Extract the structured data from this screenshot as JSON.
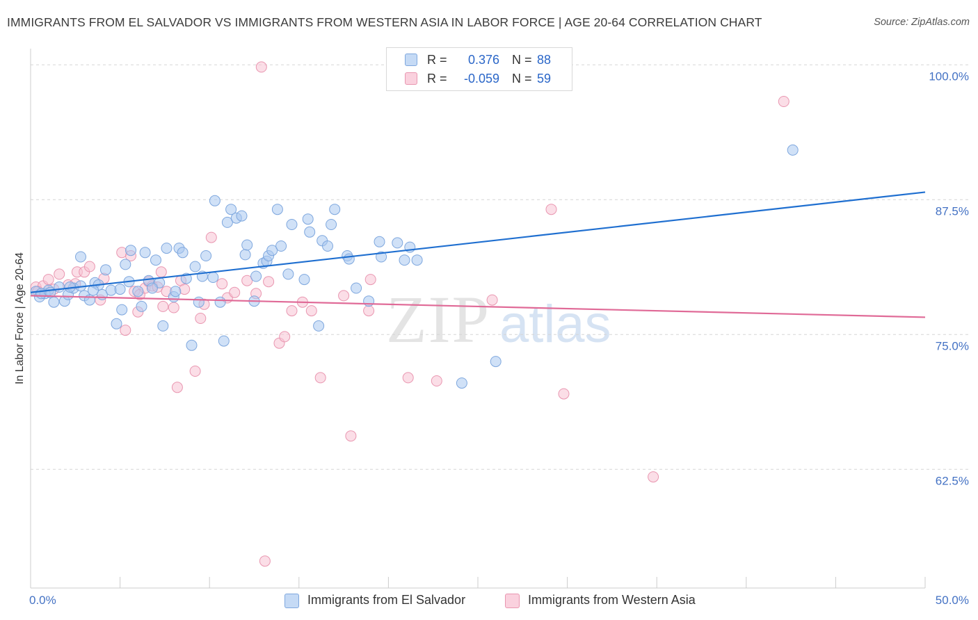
{
  "header": {
    "title": "IMMIGRANTS FROM EL SALVADOR VS IMMIGRANTS FROM WESTERN ASIA IN LABOR FORCE | AGE 20-64 CORRELATION CHART",
    "source": "Source: ZipAtlas.com"
  },
  "colors": {
    "blue_fill": "#a9c8f0",
    "blue_stroke": "#7ea7de",
    "blue_line": "#1f6fd0",
    "pink_fill": "#f7c3d3",
    "pink_stroke": "#e996b0",
    "pink_line": "#e06a97",
    "tick_text": "#4472c4",
    "grid": "#d5d5d5"
  },
  "legend": {
    "rows": [
      {
        "r_label": "R =",
        "r_value": "0.376",
        "n_label": "N =",
        "n_value": "88"
      },
      {
        "r_label": "R =",
        "r_value": "-0.059",
        "n_label": "N =",
        "n_value": "59"
      }
    ]
  },
  "bottom_legend": {
    "series1": "Immigrants from El Salvador",
    "series2": "Immigrants from Western Asia"
  },
  "watermark": {
    "zip": "ZIP",
    "atlas": "atlas"
  },
  "chart_data": {
    "type": "scatter",
    "title": "IMMIGRANTS FROM EL SALVADOR VS IMMIGRANTS FROM WESTERN ASIA IN LABOR FORCE | AGE 20-64 CORRELATION CHART",
    "xlabel": "",
    "ylabel": "In Labor Force | Age 20-64",
    "xlim": [
      0,
      50
    ],
    "ylim": [
      51.5,
      101.5
    ],
    "x_tick_labels": [
      "0.0%",
      "50.0%"
    ],
    "y_ticks": [
      62.5,
      75.0,
      87.5,
      100.0
    ],
    "y_tick_labels": [
      "62.5%",
      "75.0%",
      "87.5%",
      "100.0%"
    ],
    "grid": "horizontal dashed",
    "legend_position": "top-center",
    "series": [
      {
        "name": "Immigrants from El Salvador",
        "color": "#a9c8f0",
        "trend": {
          "x": [
            0,
            50
          ],
          "y": [
            78.9,
            88.2
          ]
        },
        "points": [
          [
            0.3,
            79.0
          ],
          [
            0.5,
            78.5
          ],
          [
            0.8,
            78.8
          ],
          [
            1.0,
            79.1
          ],
          [
            1.3,
            78.0
          ],
          [
            1.6,
            79.4
          ],
          [
            1.9,
            78.1
          ],
          [
            2.1,
            78.7
          ],
          [
            2.4,
            79.3
          ],
          [
            2.8,
            79.5
          ],
          [
            2.8,
            82.2
          ],
          [
            3.0,
            78.6
          ],
          [
            3.3,
            78.2
          ],
          [
            3.6,
            79.8
          ],
          [
            3.8,
            79.6
          ],
          [
            4.0,
            78.7
          ],
          [
            4.2,
            81.0
          ],
          [
            4.5,
            79.1
          ],
          [
            4.8,
            76.0
          ],
          [
            5.0,
            79.2
          ],
          [
            5.1,
            77.3
          ],
          [
            5.3,
            81.5
          ],
          [
            5.5,
            79.9
          ],
          [
            5.6,
            82.8
          ],
          [
            6.0,
            79.0
          ],
          [
            6.2,
            77.6
          ],
          [
            6.4,
            82.6
          ],
          [
            6.6,
            80.0
          ],
          [
            7.0,
            81.9
          ],
          [
            7.2,
            79.8
          ],
          [
            7.4,
            75.8
          ],
          [
            7.6,
            83.0
          ],
          [
            8.0,
            78.5
          ],
          [
            8.1,
            79.0
          ],
          [
            8.3,
            83.0
          ],
          [
            8.5,
            82.6
          ],
          [
            8.7,
            80.2
          ],
          [
            9.0,
            74.0
          ],
          [
            9.2,
            81.3
          ],
          [
            9.4,
            78.0
          ],
          [
            9.6,
            80.4
          ],
          [
            9.8,
            82.3
          ],
          [
            10.2,
            80.3
          ],
          [
            10.3,
            87.4
          ],
          [
            10.6,
            78.0
          ],
          [
            10.8,
            74.4
          ],
          [
            11.0,
            85.4
          ],
          [
            11.2,
            86.6
          ],
          [
            11.5,
            85.8
          ],
          [
            11.8,
            86.0
          ],
          [
            12.0,
            82.4
          ],
          [
            12.1,
            83.3
          ],
          [
            12.5,
            78.1
          ],
          [
            12.6,
            80.4
          ],
          [
            13.0,
            81.6
          ],
          [
            13.2,
            81.8
          ],
          [
            13.3,
            82.3
          ],
          [
            13.5,
            82.8
          ],
          [
            13.8,
            86.6
          ],
          [
            14.0,
            83.2
          ],
          [
            14.4,
            80.6
          ],
          [
            14.6,
            85.2
          ],
          [
            15.3,
            80.1
          ],
          [
            15.5,
            85.7
          ],
          [
            15.6,
            84.5
          ],
          [
            16.1,
            75.8
          ],
          [
            16.3,
            83.7
          ],
          [
            16.6,
            83.2
          ],
          [
            16.8,
            85.2
          ],
          [
            17.0,
            86.6
          ],
          [
            17.7,
            82.3
          ],
          [
            17.8,
            82.0
          ],
          [
            18.2,
            79.3
          ],
          [
            18.9,
            78.1
          ],
          [
            19.5,
            83.6
          ],
          [
            19.6,
            82.2
          ],
          [
            20.5,
            83.5
          ],
          [
            20.9,
            81.9
          ],
          [
            21.2,
            83.1
          ],
          [
            21.6,
            81.9
          ],
          [
            24.1,
            70.5
          ],
          [
            26.0,
            72.5
          ],
          [
            42.6,
            92.1
          ],
          [
            0.6,
            78.8
          ],
          [
            1.1,
            78.9
          ],
          [
            2.2,
            79.4
          ],
          [
            3.5,
            79.1
          ],
          [
            6.8,
            79.3
          ]
        ]
      },
      {
        "name": "Immigrants from Western Asia",
        "color": "#f7c3d3",
        "trend": {
          "x": [
            0,
            50
          ],
          "y": [
            78.6,
            76.6
          ]
        },
        "points": [
          [
            0.3,
            79.4
          ],
          [
            0.7,
            79.5
          ],
          [
            1.0,
            80.1
          ],
          [
            1.3,
            79.2
          ],
          [
            1.6,
            80.6
          ],
          [
            2.1,
            79.6
          ],
          [
            2.5,
            79.7
          ],
          [
            2.6,
            80.8
          ],
          [
            3.0,
            80.8
          ],
          [
            3.3,
            81.3
          ],
          [
            3.9,
            78.2
          ],
          [
            4.1,
            80.2
          ],
          [
            5.1,
            82.6
          ],
          [
            5.3,
            75.4
          ],
          [
            5.6,
            82.3
          ],
          [
            5.8,
            79.0
          ],
          [
            6.0,
            77.1
          ],
          [
            6.1,
            78.7
          ],
          [
            6.4,
            79.3
          ],
          [
            6.6,
            79.9
          ],
          [
            6.8,
            79.5
          ],
          [
            7.1,
            79.4
          ],
          [
            7.3,
            80.8
          ],
          [
            7.4,
            77.6
          ],
          [
            7.6,
            79.0
          ],
          [
            8.0,
            77.5
          ],
          [
            8.2,
            70.1
          ],
          [
            8.4,
            80.0
          ],
          [
            8.6,
            79.2
          ],
          [
            9.2,
            71.6
          ],
          [
            9.5,
            76.5
          ],
          [
            9.7,
            77.8
          ],
          [
            10.1,
            84.0
          ],
          [
            10.7,
            79.7
          ],
          [
            11.0,
            78.4
          ],
          [
            11.4,
            78.9
          ],
          [
            12.1,
            80.0
          ],
          [
            12.6,
            78.8
          ],
          [
            12.9,
            99.8
          ],
          [
            13.1,
            54.0
          ],
          [
            13.3,
            79.9
          ],
          [
            13.9,
            74.2
          ],
          [
            14.2,
            74.8
          ],
          [
            14.6,
            77.2
          ],
          [
            15.2,
            78.0
          ],
          [
            15.7,
            77.2
          ],
          [
            16.2,
            71.0
          ],
          [
            17.5,
            78.6
          ],
          [
            17.9,
            65.6
          ],
          [
            18.9,
            77.2
          ],
          [
            19.0,
            80.1
          ],
          [
            21.1,
            71.0
          ],
          [
            22.7,
            70.7
          ],
          [
            25.8,
            78.2
          ],
          [
            29.1,
            86.6
          ],
          [
            29.8,
            69.5
          ],
          [
            34.8,
            61.8
          ],
          [
            42.1,
            96.6
          ],
          [
            0.4,
            79.0
          ]
        ]
      }
    ]
  }
}
